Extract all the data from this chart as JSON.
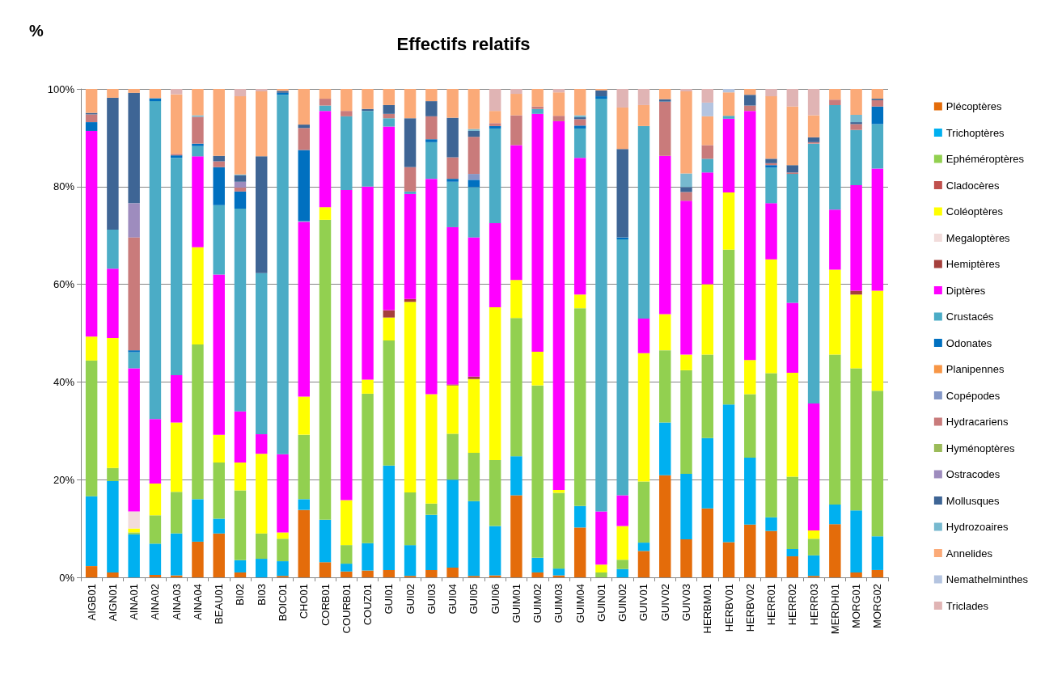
{
  "chart_data": {
    "type": "bar",
    "title": "Effectifs relatifs",
    "ylabel": "%",
    "stacked": true,
    "grid": "y",
    "legend": "right",
    "ylim": [
      0,
      100
    ],
    "yticks": [
      {
        "value": 0,
        "label": "0%"
      },
      {
        "value": 20,
        "label": "20%"
      },
      {
        "value": 40,
        "label": "40%"
      },
      {
        "value": 60,
        "label": "60%"
      },
      {
        "value": 80,
        "label": "80%"
      },
      {
        "value": 100,
        "label": "100%"
      }
    ],
    "categories": [
      "AIGB01",
      "AIGN01",
      "AINA01",
      "AINA02",
      "AINA03",
      "AINA04",
      "BEAU01",
      "BI02",
      "BI03",
      "BOIC01",
      "CHO01",
      "CORB01",
      "COURB01",
      "COUZ01",
      "GUI01",
      "GUI02",
      "GUI03",
      "GUI04",
      "GUI05",
      "GUI06",
      "GUIM01",
      "GUIM02",
      "GUIM03",
      "GUIM04",
      "GUIN01",
      "GUIN02",
      "GUIV01",
      "GUIV02",
      "GUIV03",
      "HERBM01",
      "HERBV01",
      "HERBV02",
      "HERR01",
      "HERR02",
      "HERR03",
      "MERDH01",
      "MORG01",
      "MORG02"
    ],
    "series": [
      {
        "name": "Plécoptères",
        "color": "#e46c0a",
        "values": [
          2.3,
          1,
          0,
          0.5,
          0.4,
          7.3,
          9,
          1,
          0,
          0.3,
          13.8,
          3.1,
          1.2,
          1.4,
          1.5,
          0.3,
          1.5,
          2,
          0.3,
          0.4,
          16.8,
          1,
          0.4,
          10.2,
          0,
          0,
          5.4,
          20.9,
          7.8,
          14.1,
          7.2,
          10.8,
          9.5,
          4.3,
          0.3,
          10.9,
          1,
          1.5
        ]
      },
      {
        "name": "Trichoptères",
        "color": "#00b0f0",
        "values": [
          14.3,
          18.7,
          8.8,
          6.4,
          8.6,
          8.7,
          3,
          2.5,
          3.8,
          3,
          2.2,
          8.7,
          1.6,
          5.6,
          21.4,
          6.3,
          11.3,
          18,
          15.3,
          10.1,
          8,
          3,
          1.4,
          4.4,
          0,
          1.7,
          1.7,
          10.8,
          13.4,
          14.4,
          28.2,
          13.7,
          2.8,
          1.5,
          4.2,
          4,
          12.7,
          6.9
        ]
      },
      {
        "name": "Ephéméroptères",
        "color": "#92d050",
        "values": [
          27.8,
          2.7,
          0.4,
          5.8,
          8.5,
          31.7,
          11.5,
          14.3,
          5.2,
          4.6,
          13.2,
          61.4,
          3.8,
          30.6,
          25.6,
          10.8,
          2.3,
          9.4,
          9.9,
          13.5,
          28.3,
          35.3,
          15.5,
          40.5,
          1,
          1.9,
          12.5,
          14.8,
          21.2,
          17.1,
          31.7,
          13,
          29.5,
          14.8,
          3.4,
          30.7,
          29.1,
          29.8
        ]
      },
      {
        "name": "Cladocères",
        "color": "#c0504d",
        "values": [
          0,
          0,
          0,
          0,
          0,
          0,
          0,
          0,
          0,
          0,
          0,
          0,
          0,
          0,
          0,
          0,
          0,
          0,
          0,
          0,
          0,
          0,
          0,
          0,
          0,
          0,
          0,
          0,
          0,
          0,
          0,
          0,
          0,
          0,
          0,
          0,
          0,
          0
        ]
      },
      {
        "name": "Coléoptères",
        "color": "#ffff00",
        "values": [
          4.9,
          26.6,
          0.8,
          6.5,
          14.2,
          19.9,
          5.7,
          5.7,
          16.3,
          1.3,
          7.8,
          2.6,
          9.2,
          2.9,
          4.7,
          39,
          22.4,
          9.9,
          15.1,
          31.3,
          7.8,
          6.9,
          0.6,
          2.8,
          1.6,
          6.9,
          26.3,
          7.4,
          3.2,
          14.4,
          11.7,
          7,
          23.3,
          21.3,
          1.7,
          17.4,
          15.1,
          20.5
        ]
      },
      {
        "name": "Megaloptères",
        "color": "#f2dcdb",
        "values": [
          0,
          0,
          3.5,
          0,
          0,
          0,
          0,
          0,
          0,
          0,
          0,
          0,
          0,
          0,
          0,
          0,
          0,
          0,
          0,
          0,
          0,
          0,
          0,
          0,
          0,
          0,
          0,
          0,
          0,
          0,
          0,
          0,
          0,
          0,
          0,
          0,
          0,
          0
        ]
      },
      {
        "name": "Hemiptères",
        "color": "#a5403c",
        "values": [
          0,
          0,
          0,
          0,
          0,
          0,
          0,
          0,
          0,
          0,
          0,
          0,
          0,
          0,
          1.5,
          0.6,
          0,
          0.2,
          0.5,
          0,
          0,
          0,
          0,
          0,
          0,
          0,
          0,
          0,
          0,
          0,
          0,
          0,
          0,
          0,
          0,
          0,
          0.8,
          0
        ]
      },
      {
        "name": "Diptères",
        "color": "#ff00ff",
        "values": [
          42.1,
          14.2,
          29.3,
          13.2,
          9.7,
          18.6,
          32.8,
          10.5,
          4,
          16,
          35.8,
          19.7,
          63.5,
          39.5,
          37.6,
          21.5,
          44.1,
          32.2,
          28.5,
          17.2,
          27.6,
          48.7,
          75.5,
          28,
          10.9,
          6.3,
          7.1,
          32.4,
          31.5,
          22.9,
          15.1,
          51,
          11.5,
          14.3,
          26,
          12.3,
          21.6,
          25
        ]
      },
      {
        "name": "Crustacés",
        "color": "#4bacc6",
        "values": [
          0,
          8,
          3.3,
          65.1,
          44.5,
          2.1,
          14.2,
          41.5,
          33,
          73.6,
          0.2,
          1.1,
          15.1,
          15.5,
          1.7,
          0.5,
          7.5,
          9.3,
          10.3,
          19.4,
          0,
          1,
          0,
          6,
          84.5,
          52.4,
          39.4,
          0,
          0,
          2.8,
          0.6,
          0,
          7.3,
          26.4,
          53.2,
          21.4,
          11.3,
          9.1
        ]
      },
      {
        "name": "Odonates",
        "color": "#0070c0",
        "values": [
          1.8,
          0,
          0.4,
          0.6,
          0.5,
          0.5,
          7.8,
          3.5,
          0,
          0.4,
          14.5,
          0,
          0,
          0,
          0,
          0,
          0.6,
          0.6,
          1.5,
          0.5,
          0,
          0,
          0,
          0.6,
          0.5,
          0.4,
          0,
          0,
          0,
          0,
          0,
          0,
          0.5,
          0,
          0,
          0,
          0,
          3.6
        ]
      },
      {
        "name": "Planipennes",
        "color": "#f79646",
        "values": [
          0,
          0,
          0,
          0,
          0,
          0,
          0,
          0,
          0,
          0,
          0,
          0,
          0,
          0,
          0,
          0,
          0,
          0,
          0,
          0,
          0,
          0,
          0,
          0,
          0,
          0,
          0,
          0,
          0,
          0,
          0,
          0,
          0,
          0,
          0,
          0,
          0,
          0
        ]
      },
      {
        "name": "Copépodes",
        "color": "#8497c7",
        "values": [
          0,
          0,
          0,
          0,
          0,
          0,
          0,
          0,
          0,
          0,
          0,
          0,
          0,
          0,
          0,
          0,
          0,
          0,
          1.2,
          0,
          0,
          0,
          0,
          0,
          0,
          0,
          0,
          0,
          0,
          0,
          0,
          0,
          0,
          0,
          0,
          0,
          0,
          0
        ]
      },
      {
        "name": "Hydracariens",
        "color": "#c97b7b",
        "values": [
          1.6,
          0,
          23.1,
          0,
          0.3,
          5.5,
          1.2,
          0.8,
          0,
          0,
          4.5,
          1.4,
          1.1,
          0,
          0.9,
          5,
          4.7,
          4.4,
          7.6,
          0.6,
          6.1,
          0.5,
          1.1,
          1.3,
          0,
          0,
          0,
          11.1,
          1.8,
          2.8,
          0,
          1.1,
          0.4,
          0.3,
          0.3,
          1.1,
          1.2,
          1.3
        ]
      },
      {
        "name": "Hyménoptères",
        "color": "#9bbb59",
        "values": [
          0,
          0,
          0,
          0,
          0,
          0,
          0,
          0,
          0,
          0,
          0,
          0,
          0,
          0,
          0,
          0,
          0,
          0,
          0,
          0,
          0,
          0,
          0,
          0,
          0,
          0,
          0,
          0,
          0,
          0,
          0,
          0,
          0,
          0,
          0,
          0,
          0,
          0
        ]
      },
      {
        "name": "Ostracodes",
        "color": "#9e8cbe",
        "values": [
          0,
          0,
          7,
          0,
          0,
          0,
          0,
          1.2,
          0,
          0,
          0,
          0,
          0,
          0,
          0,
          0,
          0,
          0,
          0,
          0,
          0,
          0,
          0,
          0,
          0,
          0,
          0,
          0,
          0,
          0,
          0,
          0,
          0,
          0,
          0,
          0,
          0,
          0
        ]
      },
      {
        "name": "Mollusques",
        "color": "#3e6595",
        "values": [
          0.3,
          27,
          22.6,
          0,
          0,
          0,
          1.1,
          1.3,
          23.9,
          0.4,
          0.7,
          0,
          0,
          0.4,
          1.8,
          10,
          3.1,
          8.1,
          1.2,
          0,
          0,
          0,
          0,
          0.4,
          1.2,
          18.1,
          0,
          0.5,
          1,
          0,
          0,
          2.2,
          0.9,
          1.5,
          1,
          0,
          0.4,
          0.3
        ]
      },
      {
        "name": "Hydrozoaires",
        "color": "#77b9cf",
        "values": [
          0,
          0,
          0,
          0,
          0,
          0.3,
          0,
          0.2,
          0,
          0,
          0,
          0,
          0,
          0,
          0,
          0,
          0,
          0,
          0.4,
          0,
          0,
          0,
          0,
          0.4,
          0,
          0,
          0,
          0,
          2.8,
          0,
          0,
          0,
          0,
          0,
          0,
          0,
          1.5,
          0
        ]
      },
      {
        "name": "Annelides",
        "color": "#fbaa78",
        "values": [
          4.9,
          1.8,
          0.8,
          1.9,
          12.2,
          5.4,
          13.7,
          16,
          13.3,
          0.4,
          7.3,
          2,
          4.5,
          4.1,
          3.3,
          6,
          2.5,
          5.9,
          8.2,
          2.5,
          4.4,
          3.6,
          4.8,
          5.4,
          0.3,
          8.5,
          4.3,
          2.1,
          16.8,
          5.9,
          4.8,
          1.2,
          12.8,
          12,
          4.5,
          2.2,
          5.3,
          2
        ]
      },
      {
        "name": "Nemathelminthes",
        "color": "#b4c4e0",
        "values": [
          0,
          0,
          0,
          0,
          0,
          0,
          0,
          0,
          0,
          0,
          0,
          0,
          0,
          0,
          0,
          0,
          0,
          0,
          0,
          0,
          0,
          0,
          0,
          0,
          0,
          0,
          0,
          0,
          0,
          2.8,
          0.7,
          0,
          0,
          0,
          0,
          0,
          0,
          0
        ]
      },
      {
        "name": "Triclades",
        "color": "#e0b4b4",
        "values": [
          0,
          0,
          0,
          0,
          1.1,
          0,
          0,
          1.5,
          0.5,
          0,
          0,
          0,
          0,
          0,
          0,
          0,
          0,
          0,
          0,
          4.5,
          1,
          0,
          0.7,
          0,
          0,
          3.8,
          3.3,
          0,
          0.5,
          2.8,
          0,
          0,
          1.5,
          3.6,
          5.4,
          0,
          0,
          0
        ]
      }
    ]
  }
}
